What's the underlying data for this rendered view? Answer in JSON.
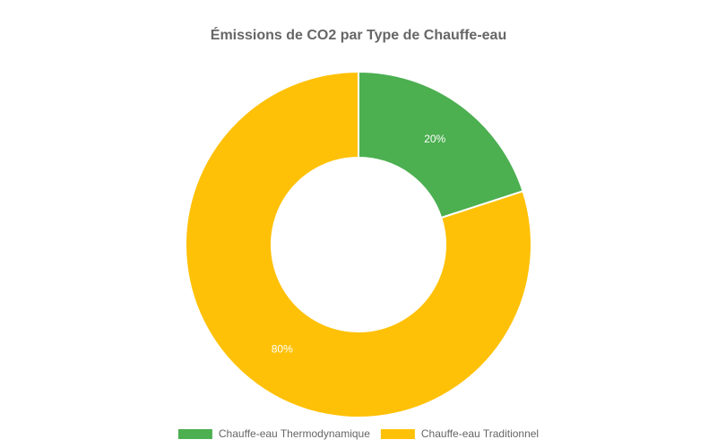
{
  "chart_data": {
    "type": "doughnut",
    "title": "Émissions de CO2 par Type de Chauffe-eau",
    "categories": [
      "Chauffe-eau Thermodynamique",
      "Chauffe-eau Traditionnel"
    ],
    "values": [
      20,
      80
    ],
    "value_labels": [
      "20%",
      "80%"
    ],
    "colors": [
      "#4caf50",
      "#ffc107"
    ]
  }
}
